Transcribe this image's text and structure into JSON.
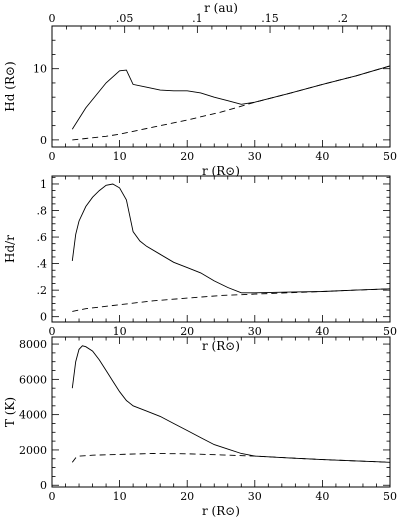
{
  "chart_data": [
    {
      "type": "line",
      "xlabel": "r (R⊙)",
      "ylabel": "Hd (R⊙)",
      "xlim": [
        0,
        50
      ],
      "ylim": [
        -1,
        16
      ],
      "x_ticks": [
        0,
        10,
        20,
        30,
        40,
        50
      ],
      "x_tick_labels": [
        "0",
        "10",
        "20",
        "30",
        "40",
        "50"
      ],
      "y_ticks": [
        0,
        10
      ],
      "y_tick_labels": [
        "0",
        "10"
      ],
      "top_axis": {
        "label": "r (au)",
        "ticks_au": [
          0,
          0.05,
          0.1,
          0.15,
          0.2
        ],
        "tick_labels": [
          "0",
          ".05",
          ".1",
          ".15",
          ".2"
        ],
        "r_sun_per_au": 215.03
      },
      "series": [
        {
          "style": "solid",
          "x": [
            3,
            5,
            8,
            10,
            11,
            12,
            14,
            16,
            18,
            20,
            22,
            24,
            26,
            28,
            30,
            35,
            40,
            45,
            50
          ],
          "y": [
            1.5,
            4.5,
            8,
            9.7,
            9.8,
            7.8,
            7.4,
            7.0,
            6.9,
            6.9,
            6.6,
            6.0,
            5.5,
            5.0,
            5.3,
            6.5,
            7.8,
            9.0,
            10.4
          ]
        },
        {
          "style": "dashed",
          "x": [
            3,
            5,
            8,
            10,
            15,
            20,
            25,
            30,
            35,
            40,
            45,
            50
          ],
          "y": [
            0.0,
            0.2,
            0.5,
            0.8,
            1.8,
            2.8,
            3.9,
            5.3,
            6.5,
            7.8,
            9.0,
            10.4
          ]
        }
      ]
    },
    {
      "type": "line",
      "xlabel": "r (R⊙)",
      "ylabel": "Hd/r",
      "xlim": [
        0,
        50
      ],
      "ylim": [
        -0.04,
        1.06
      ],
      "x_ticks": [
        0,
        10,
        20,
        30,
        40,
        50
      ],
      "x_tick_labels": [
        "0",
        "10",
        "20",
        "30",
        "40",
        "50"
      ],
      "y_ticks": [
        0,
        0.2,
        0.4,
        0.6,
        0.8,
        1.0
      ],
      "y_tick_labels": [
        "0",
        ".2",
        ".4",
        ".6",
        ".8",
        "1"
      ],
      "series": [
        {
          "style": "solid",
          "x": [
            3,
            3.5,
            4,
            5,
            6,
            7,
            8,
            9,
            10,
            11,
            12,
            13,
            14,
            16,
            18,
            20,
            22,
            24,
            26,
            28,
            30,
            35,
            40,
            45,
            50
          ],
          "y": [
            0.42,
            0.62,
            0.72,
            0.83,
            0.9,
            0.95,
            0.99,
            1.0,
            0.97,
            0.88,
            0.64,
            0.57,
            0.53,
            0.47,
            0.41,
            0.37,
            0.33,
            0.27,
            0.22,
            0.18,
            0.18,
            0.185,
            0.19,
            0.2,
            0.21
          ]
        },
        {
          "style": "dashed",
          "x": [
            3,
            5,
            10,
            15,
            20,
            25,
            30,
            35,
            40,
            45,
            50
          ],
          "y": [
            0.04,
            0.06,
            0.09,
            0.12,
            0.14,
            0.16,
            0.17,
            0.18,
            0.19,
            0.2,
            0.21
          ]
        }
      ]
    },
    {
      "type": "line",
      "xlabel": "r (R⊙)",
      "ylabel": "T (K)",
      "xlim": [
        0,
        50
      ],
      "ylim": [
        -100,
        8400
      ],
      "x_ticks": [
        0,
        10,
        20,
        30,
        40,
        50
      ],
      "x_tick_labels": [
        "0",
        "10",
        "20",
        "30",
        "40",
        "50"
      ],
      "y_ticks": [
        0,
        2000,
        4000,
        6000,
        8000
      ],
      "y_tick_labels": [
        "0",
        "2000",
        "4000",
        "6000",
        "8000"
      ],
      "series": [
        {
          "style": "solid",
          "x": [
            3,
            3.5,
            4,
            4.5,
            5,
            6,
            7,
            8,
            9,
            10,
            11,
            12,
            14,
            16,
            18,
            20,
            22,
            24,
            26,
            28,
            30,
            35,
            40,
            45,
            50
          ],
          "y": [
            5500,
            7000,
            7700,
            7900,
            7850,
            7600,
            7100,
            6500,
            5900,
            5300,
            4800,
            4500,
            4200,
            3900,
            3500,
            3100,
            2700,
            2300,
            2050,
            1800,
            1650,
            1550,
            1450,
            1380,
            1300
          ]
        },
        {
          "style": "dashed",
          "x": [
            3,
            3.5,
            4,
            6,
            10,
            15,
            20,
            25,
            30,
            35,
            40,
            45,
            50
          ],
          "y": [
            1300,
            1550,
            1650,
            1700,
            1750,
            1800,
            1780,
            1720,
            1650,
            1550,
            1450,
            1380,
            1300
          ]
        }
      ]
    }
  ]
}
